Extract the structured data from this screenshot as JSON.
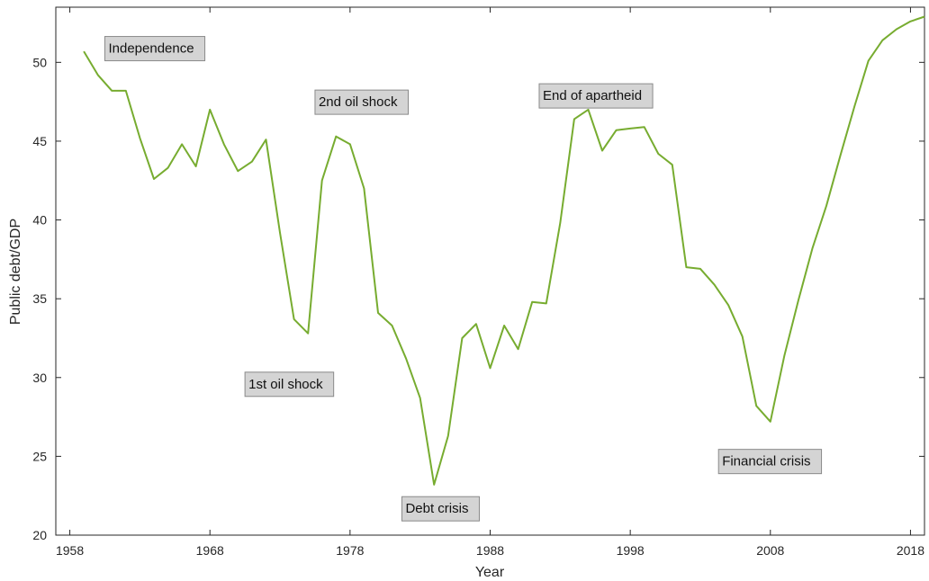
{
  "chart_data": {
    "type": "line",
    "xlabel": "Year",
    "ylabel": "Public debt/GDP",
    "xlim": [
      1957,
      2019
    ],
    "ylim": [
      20,
      53.5
    ],
    "xticks": [
      1958,
      1968,
      1978,
      1988,
      1998,
      2008,
      2018
    ],
    "yticks": [
      20,
      25,
      30,
      35,
      40,
      45,
      50
    ],
    "grid": false,
    "line_color": "#77ac30",
    "series": [
      {
        "x": [
          1959,
          1960,
          1961,
          1962,
          1963,
          1964,
          1965,
          1966,
          1967,
          1968,
          1969,
          1970,
          1971,
          1972,
          1973,
          1974,
          1975,
          1976,
          1977,
          1978,
          1979,
          1980,
          1981,
          1982,
          1983,
          1984,
          1985,
          1986,
          1987,
          1988,
          1989,
          1990,
          1991,
          1992,
          1993,
          1994,
          1995,
          1996,
          1997,
          1998,
          1999,
          2000,
          2001,
          2002,
          2003,
          2004,
          2005,
          2006,
          2007,
          2008,
          2009,
          2010,
          2011,
          2012,
          2013,
          2014,
          2015,
          2016,
          2017,
          2018,
          2019
        ],
        "values": [
          50.7,
          49.2,
          48.2,
          48.2,
          45.2,
          42.6,
          43.3,
          44.8,
          43.4,
          47.0,
          44.8,
          43.1,
          43.7,
          45.1,
          39.2,
          33.7,
          32.8,
          42.5,
          45.3,
          44.8,
          42.0,
          34.1,
          33.3,
          31.2,
          28.7,
          23.2,
          26.3,
          32.5,
          33.4,
          30.6,
          33.3,
          31.8,
          34.8,
          34.7,
          39.8,
          46.4,
          47.0,
          44.4,
          45.7,
          45.8,
          45.9,
          44.2,
          43.5,
          37.0,
          36.9,
          35.9,
          34.6,
          32.6,
          28.2,
          27.2,
          31.4,
          34.9,
          38.2,
          40.9,
          44.1,
          47.2,
          50.1,
          51.4,
          52.1,
          52.6,
          52.9
        ]
      }
    ],
    "annotations": [
      {
        "text": "Independence",
        "x": 1960.5,
        "y": 50.9
      },
      {
        "text": "2nd oil shock",
        "x": 1975.5,
        "y": 47.5
      },
      {
        "text": "1st oil shock",
        "x": 1970.5,
        "y": 29.6
      },
      {
        "text": "Debt crisis",
        "x": 1981.7,
        "y": 21.7
      },
      {
        "text": "End of apartheid",
        "x": 1991.5,
        "y": 47.9
      },
      {
        "text": "Financial crisis",
        "x": 2004.3,
        "y": 24.7
      }
    ]
  }
}
